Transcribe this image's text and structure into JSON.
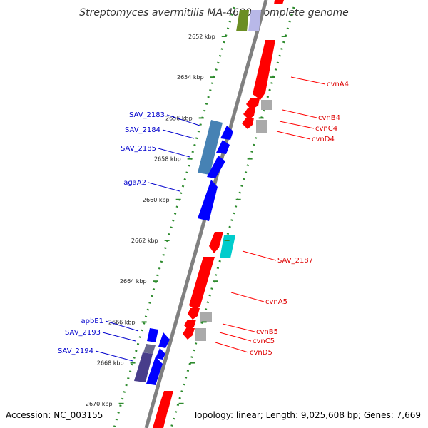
{
  "title": "Streptomyces avermitilis MA-4680, complete genome",
  "footer": {
    "accession": "Accession: NC_003155",
    "stats": "Topology: linear; Length: 9,025,608 bp; Genes: 7,669"
  },
  "colors": {
    "forward_gene": "#ff0000",
    "reverse_gene": "#0000ff",
    "tick": "#2e8b2e",
    "backbone": "#808080",
    "label_forward": "#dd0000",
    "label_reverse": "#0000cc"
  },
  "ticks": [
    {
      "label": "2652 kbp",
      "kbp": 2652
    },
    {
      "label": "2654 kbp",
      "kbp": 2654
    },
    {
      "label": "2656 kbp",
      "kbp": 2656
    },
    {
      "label": "2658 kbp",
      "kbp": 2658
    },
    {
      "label": "2660 kbp",
      "kbp": 2660
    },
    {
      "label": "2662 kbp",
      "kbp": 2662
    },
    {
      "label": "2664 kbp",
      "kbp": 2664
    },
    {
      "label": "2666 kbp",
      "kbp": 2666
    },
    {
      "label": "2668 kbp",
      "kbp": 2668
    },
    {
      "label": "2670 kbp",
      "kbp": 2670
    }
  ],
  "labels_forward": [
    "cvnA4",
    "cvnB4",
    "cvnC4",
    "cvnD4",
    "SAV_2187",
    "cvnA5",
    "cvnB5",
    "cvnC5",
    "cvnD5"
  ],
  "labels_reverse": [
    "SAV_2183",
    "SAV_2184",
    "SAV_2185",
    "agaA2",
    "apbE1",
    "SAV_2193",
    "SAV_2194"
  ]
}
